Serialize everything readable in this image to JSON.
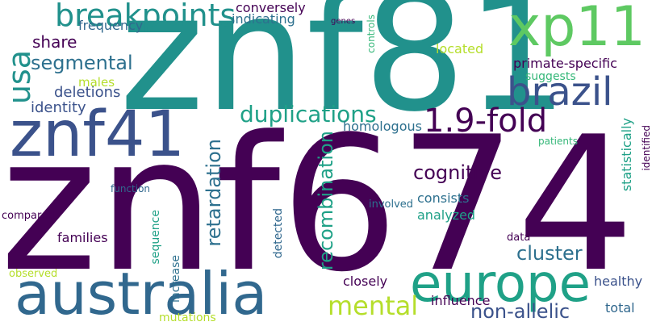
{
  "words": {
    "znf674": "znf674",
    "znf81": "znf81",
    "australia": "australia",
    "europe": "europe",
    "xp11": "xp11",
    "znf41": "znf41",
    "brazil": "brazil",
    "breakpoints": "breakpoints",
    "fold": "1.9-fold",
    "usa": "usa",
    "duplications": "duplications",
    "mental": "mental",
    "segmental": "segmental",
    "retardation": "retardation",
    "recombination": "recombination",
    "cognitive": "cognitive",
    "cluster": "cluster",
    "non_allelic": "non-allelic",
    "share": "share",
    "deletions": "deletions",
    "identity": "identity",
    "conversely": "conversely",
    "indicating": "indicating",
    "frequency": "frequency",
    "males": "males",
    "primate_specific": "primate-specific",
    "suggests": "suggests",
    "located": "located",
    "homologous": "homologous",
    "consists": "consists",
    "analyzed": "analyzed",
    "statistically": "statistically",
    "patients": "patients",
    "identified": "identified",
    "function": "function",
    "compared": "compared",
    "families": "families",
    "sequence": "sequence",
    "detected": "detected",
    "involved": "involved",
    "increase": "increase",
    "data": "data",
    "observed": "observed",
    "closely": "closely",
    "healthy": "healthy",
    "influence": "influence",
    "total": "total",
    "mutations": "mutations",
    "controls": "controls",
    "genes": "genes"
  }
}
